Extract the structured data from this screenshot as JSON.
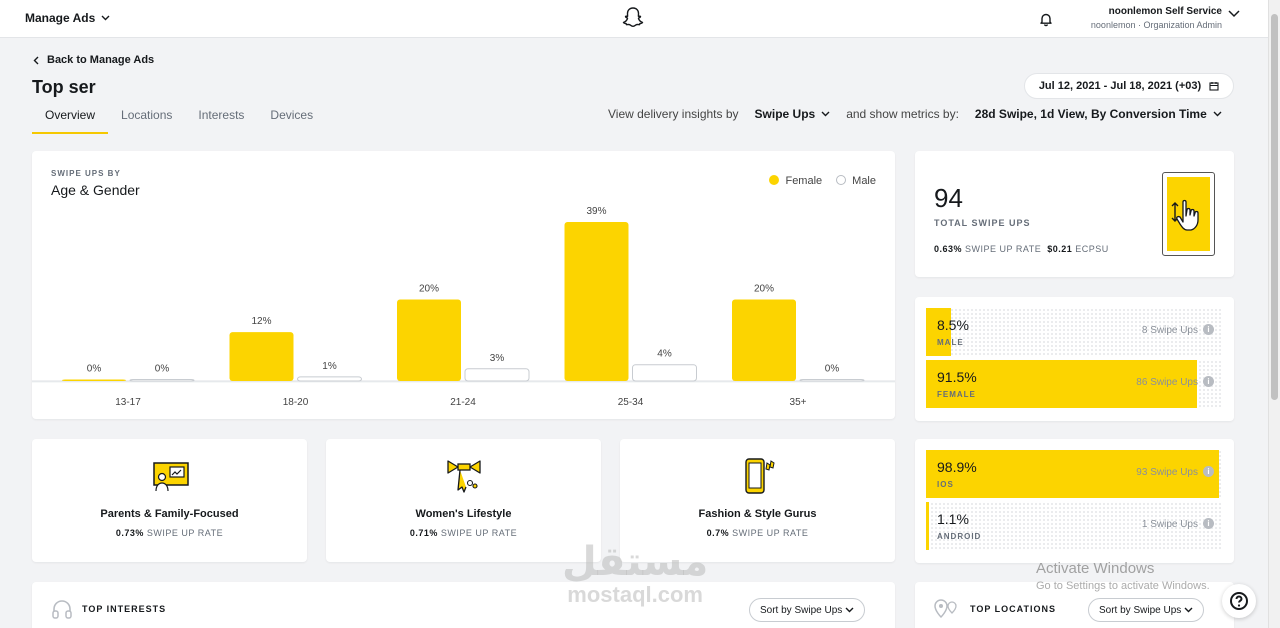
{
  "topnav": {
    "manage_ads": "Manage Ads",
    "account_name": "noonlemon Self Service",
    "account_role": "noonlemon · Organization Admin"
  },
  "back_link": "Back to Manage Ads",
  "page_title": "Top ser",
  "date_range": "Jul 12, 2021 - Jul 18, 2021 (+03)",
  "tabs": [
    {
      "label": "Overview",
      "active": true
    },
    {
      "label": "Locations"
    },
    {
      "label": "Interests"
    },
    {
      "label": "Devices"
    }
  ],
  "insights": {
    "prefix": "View delivery insights by",
    "metric": "Swipe Ups",
    "middle": "and show metrics by:",
    "window": "28d Swipe, 1d View, By Conversion Time"
  },
  "chart": {
    "small_label": "SWIPE UPS BY",
    "title": "Age & Gender",
    "legend_female": "Female",
    "legend_male": "Male"
  },
  "chart_data": {
    "type": "bar",
    "title": "Age & Gender",
    "categories": [
      "13-17",
      "18-20",
      "21-24",
      "25-34",
      "35+"
    ],
    "series": [
      {
        "name": "Female",
        "values": [
          0,
          12,
          20,
          39,
          20
        ],
        "labels": [
          "0%",
          "12%",
          "20%",
          "39%",
          "20%"
        ]
      },
      {
        "name": "Male",
        "values": [
          0,
          1,
          3,
          4,
          0
        ],
        "labels": [
          "0%",
          "1%",
          "3%",
          "4%",
          "0%"
        ]
      }
    ],
    "ylim": [
      0,
      39
    ],
    "grid": false,
    "legend": "top-right"
  },
  "colors": {
    "female": "#fcd400",
    "male": "#ffffff",
    "accent": "#f5c800"
  },
  "interests": [
    {
      "name": "Parents & Family-Focused",
      "rate_value": "0.73%",
      "rate_label": "SWIPE UP RATE",
      "icon": "presentation-icon"
    },
    {
      "name": "Women's Lifestyle",
      "rate_value": "0.71%",
      "rate_label": "SWIPE UP RATE",
      "icon": "bowtie-icon"
    },
    {
      "name": "Fashion & Style Gurus",
      "rate_value": "0.7%",
      "rate_label": "SWIPE UP RATE",
      "icon": "phone-icon"
    }
  ],
  "total": {
    "value": "94",
    "label": "TOTAL SWIPE UPS",
    "rate_value": "0.63%",
    "rate_label": "SWIPE UP RATE",
    "ecpsu_value": "$0.21",
    "ecpsu_label": "ECPSU"
  },
  "gender_split": [
    {
      "pct": "8.5%",
      "label": "MALE",
      "count": "8 Swipe Ups",
      "fraction": 0.085
    },
    {
      "pct": "91.5%",
      "label": "FEMALE",
      "count": "86 Swipe Ups",
      "fraction": 0.915
    }
  ],
  "os_split": [
    {
      "pct": "98.9%",
      "label": "IOS",
      "count": "93 Swipe Ups",
      "fraction": 0.989
    },
    {
      "pct": "1.1%",
      "label": "ANDROID",
      "count": "1 Swipe Ups",
      "fraction": 0.011
    }
  ],
  "top_interests": {
    "title": "TOP INTERESTS",
    "sort": "Sort by Swipe Ups"
  },
  "top_locations": {
    "title": "TOP LOCATIONS",
    "sort": "Sort by Swipe Ups"
  },
  "watermark": {
    "line1": "Activate Windows",
    "line2": "Go to Settings to activate Windows.",
    "brand_ar": "مستقل",
    "brand_en": "mostaql.com"
  }
}
